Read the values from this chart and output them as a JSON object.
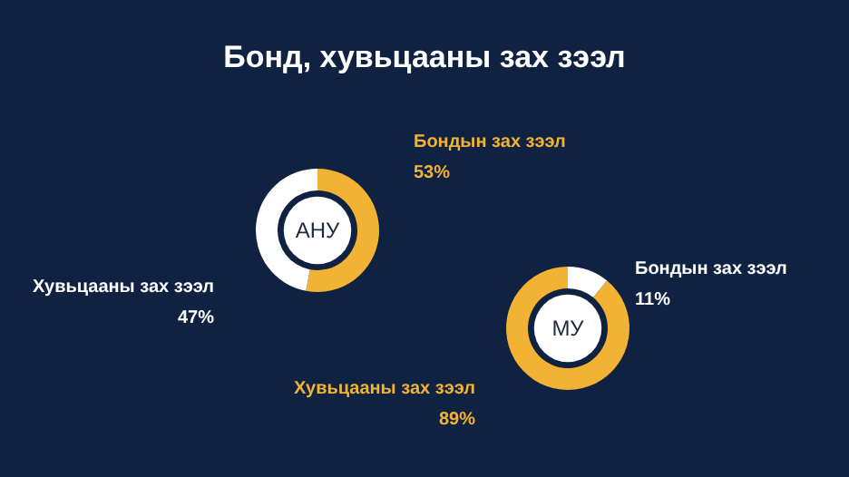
{
  "chart_data": [
    {
      "type": "donut",
      "title": "Бонд, хувьцааны зах зээл",
      "annotations": [
        "АНУ"
      ],
      "categories": [
        "Бондын зах зээл",
        "Хувьцааны зах зээл"
      ],
      "values": [
        53,
        47
      ],
      "colors": [
        "#f2b233",
        "#ffffff"
      ],
      "value_labels": [
        "53%",
        "47%"
      ]
    },
    {
      "type": "donut",
      "annotations": [
        "МУ"
      ],
      "categories": [
        "Бондын зах зээл",
        "Хувьцааны зах зээл"
      ],
      "values": [
        11,
        89
      ],
      "colors": [
        "#ffffff",
        "#f2b233"
      ],
      "value_labels": [
        "11%",
        "89%"
      ]
    }
  ]
}
